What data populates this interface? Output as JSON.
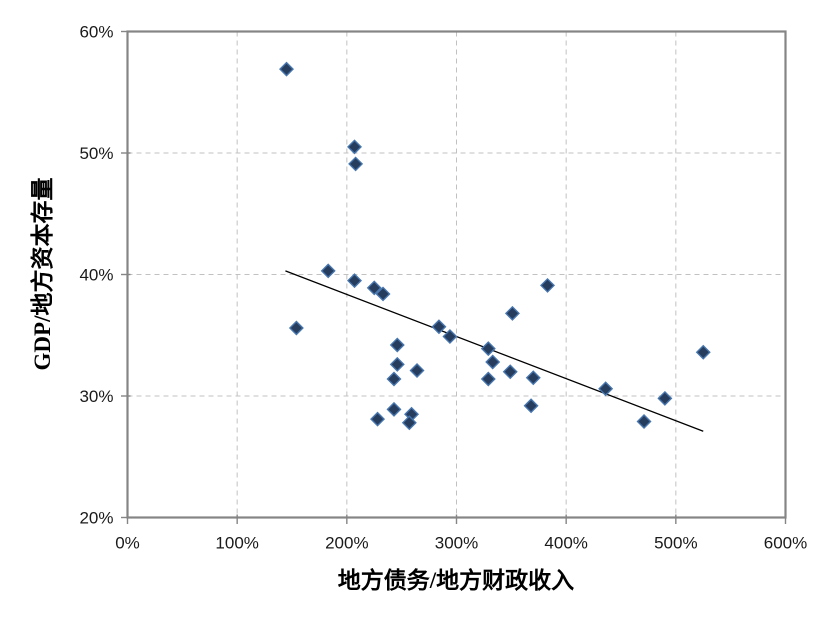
{
  "chart_data": {
    "type": "scatter",
    "title": "",
    "xlabel": "地方债务/地方财政收入",
    "ylabel": "GDP/地方资本存量",
    "xlim": [
      0,
      600
    ],
    "ylim": [
      20,
      60
    ],
    "x_ticks": [
      0,
      100,
      200,
      300,
      400,
      500,
      600
    ],
    "x_tick_labels": [
      "0%",
      "100%",
      "200%",
      "300%",
      "400%",
      "500%",
      "600%"
    ],
    "y_ticks": [
      20,
      30,
      40,
      50,
      60
    ],
    "y_tick_labels": [
      "20%",
      "30%",
      "40%",
      "50%",
      "60%"
    ],
    "grid": {
      "style": "dashed",
      "x_lines": [
        100,
        200,
        300,
        400,
        500
      ],
      "y_lines": [
        30,
        40,
        50
      ]
    },
    "legend": "none",
    "points": [
      [
        145,
        56.9
      ],
      [
        207,
        50.5
      ],
      [
        208,
        49.1
      ],
      [
        183,
        40.3
      ],
      [
        207,
        39.5
      ],
      [
        225,
        38.9
      ],
      [
        233,
        38.4
      ],
      [
        154,
        35.6
      ],
      [
        284,
        35.7
      ],
      [
        294,
        34.9
      ],
      [
        246,
        34.2
      ],
      [
        329,
        33.9
      ],
      [
        333,
        32.8
      ],
      [
        246,
        32.6
      ],
      [
        264,
        32.1
      ],
      [
        243,
        31.4
      ],
      [
        329,
        31.4
      ],
      [
        351,
        36.8
      ],
      [
        349,
        32.0
      ],
      [
        370,
        31.5
      ],
      [
        383,
        39.1
      ],
      [
        368,
        29.2
      ],
      [
        228,
        28.1
      ],
      [
        243,
        28.9
      ],
      [
        259,
        28.5
      ],
      [
        257,
        27.8
      ],
      [
        436,
        30.6
      ],
      [
        471,
        27.9
      ],
      [
        490,
        29.8
      ],
      [
        525,
        33.6
      ]
    ],
    "trendline": {
      "x1": 144,
      "y1": 40.3,
      "x2": 525,
      "y2": 27.1
    },
    "marker": {
      "shape": "diamond",
      "fill": "#273D5E",
      "stroke": "#4675AD"
    },
    "colors": {
      "background": "#FFFFFF",
      "axis": "#858585",
      "gridline": "#C1C1C1",
      "tick_text": "#1A1A1A",
      "trendline": "#000000"
    }
  }
}
